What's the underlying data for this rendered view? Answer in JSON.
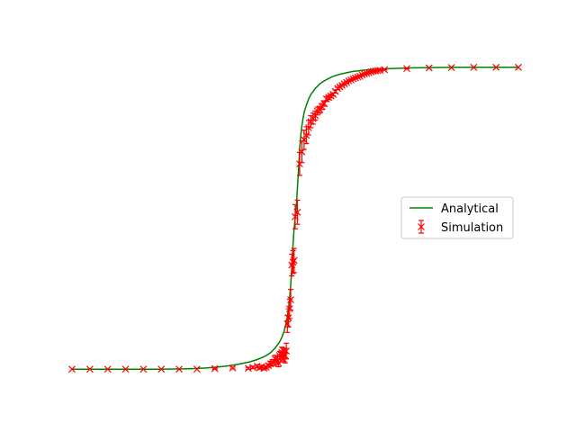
{
  "chart_data": {
    "type": "line",
    "title": "",
    "xlabel": "",
    "ylabel": "",
    "axes_visible": false,
    "grid": false,
    "xlim": [
      -1.0,
      1.0
    ],
    "ylim": [
      -0.05,
      1.05
    ],
    "legend": {
      "placement": "center-right"
    },
    "series": [
      {
        "name": "Analytical",
        "kind": "line",
        "color": "#008000",
        "x": [
          -1.0,
          -0.9,
          -0.8,
          -0.7,
          -0.6,
          -0.5,
          -0.45,
          -0.4,
          -0.35,
          -0.3,
          -0.25,
          -0.2,
          -0.17,
          -0.15,
          -0.13,
          -0.11,
          -0.09,
          -0.07,
          -0.06,
          -0.05,
          -0.045,
          -0.04,
          -0.035,
          -0.03,
          -0.025,
          -0.02,
          -0.015,
          -0.01,
          -0.005,
          0.0,
          0.005,
          0.01,
          0.015,
          0.02,
          0.025,
          0.03,
          0.035,
          0.04,
          0.05,
          0.06,
          0.07,
          0.09,
          0.11,
          0.13,
          0.15,
          0.17,
          0.2,
          0.25,
          0.3,
          0.35,
          0.4,
          0.5,
          0.6,
          0.7,
          0.8,
          0.9,
          1.0
        ],
        "y": [
          0.0,
          0.0,
          0.0,
          0.0,
          0.0,
          0.001,
          0.002,
          0.004,
          0.007,
          0.011,
          0.017,
          0.025,
          0.032,
          0.038,
          0.045,
          0.055,
          0.07,
          0.09,
          0.105,
          0.125,
          0.14,
          0.155,
          0.175,
          0.2,
          0.235,
          0.28,
          0.34,
          0.41,
          0.465,
          0.5,
          0.535,
          0.6,
          0.66,
          0.73,
          0.775,
          0.805,
          0.83,
          0.85,
          0.875,
          0.895,
          0.91,
          0.93,
          0.945,
          0.955,
          0.963,
          0.97,
          0.977,
          0.985,
          0.99,
          0.993,
          0.995,
          0.998,
          0.999,
          1.0,
          1.0,
          1.0,
          1.0
        ]
      },
      {
        "name": "Simulation",
        "kind": "errorbar",
        "marker": "x",
        "color": "#ff0000",
        "x": [
          -1.0,
          -0.92,
          -0.84,
          -0.76,
          -0.68,
          -0.6,
          -0.52,
          -0.44,
          -0.36,
          -0.28,
          -0.21,
          -0.19,
          -0.17,
          -0.16,
          -0.15,
          -0.14,
          -0.13,
          -0.12,
          -0.11,
          -0.1,
          -0.09,
          -0.08,
          -0.075,
          -0.07,
          -0.065,
          -0.06,
          -0.055,
          -0.05,
          -0.045,
          -0.04,
          -0.035,
          -0.03,
          -0.025,
          -0.02,
          -0.015,
          -0.01,
          -0.005,
          0.0,
          0.01,
          0.02,
          0.03,
          0.04,
          0.05,
          0.06,
          0.07,
          0.08,
          0.09,
          0.1,
          0.11,
          0.12,
          0.13,
          0.14,
          0.15,
          0.16,
          0.17,
          0.18,
          0.19,
          0.2,
          0.21,
          0.22,
          0.23,
          0.24,
          0.25,
          0.26,
          0.27,
          0.28,
          0.29,
          0.3,
          0.31,
          0.32,
          0.33,
          0.34,
          0.35,
          0.36,
          0.37,
          0.38,
          0.4,
          0.5,
          0.6,
          0.7,
          0.8,
          0.9,
          1.0
        ],
        "y": [
          0.0,
          0.0,
          0.0,
          0.0,
          0.0,
          0.0,
          0.0,
          0.0,
          0.002,
          0.004,
          0.003,
          0.006,
          0.01,
          0.004,
          0.008,
          0.003,
          0.006,
          0.012,
          0.018,
          0.022,
          0.034,
          0.03,
          0.02,
          0.045,
          0.04,
          0.055,
          0.05,
          0.047,
          0.045,
          0.06,
          0.15,
          0.17,
          0.2,
          0.23,
          0.345,
          0.355,
          0.36,
          0.505,
          0.52,
          0.68,
          0.72,
          0.76,
          0.775,
          0.8,
          0.82,
          0.83,
          0.84,
          0.855,
          0.86,
          0.87,
          0.88,
          0.895,
          0.9,
          0.905,
          0.91,
          0.92,
          0.93,
          0.935,
          0.94,
          0.945,
          0.95,
          0.955,
          0.958,
          0.962,
          0.965,
          0.968,
          0.97,
          0.975,
          0.978,
          0.98,
          0.982,
          0.985,
          0.987,
          0.988,
          0.989,
          0.99,
          0.992,
          0.996,
          0.998,
          0.999,
          1.0,
          1.0,
          1.0
        ],
        "yerr": [
          0,
          0,
          0,
          0,
          0,
          0,
          0,
          0,
          0.002,
          0.003,
          0.003,
          0.004,
          0.005,
          0.004,
          0.005,
          0.004,
          0.005,
          0.006,
          0.008,
          0.01,
          0.012,
          0.012,
          0.012,
          0.014,
          0.016,
          0.018,
          0.02,
          0.022,
          0.024,
          0.026,
          0.028,
          0.03,
          0.032,
          0.034,
          0.036,
          0.038,
          0.04,
          0.04,
          0.04,
          0.038,
          0.036,
          0.032,
          0.028,
          0.024,
          0.02,
          0.018,
          0.015,
          0.013,
          0.011,
          0.01,
          0.009,
          0.008,
          0.007,
          0.006,
          0.005,
          0.005,
          0.004,
          0.004,
          0.003,
          0.003,
          0.003,
          0.002,
          0.002,
          0.002,
          0.002,
          0.002,
          0.001,
          0.001,
          0.001,
          0.001,
          0.001,
          0.001,
          0.001,
          0.001,
          0.001,
          0.001,
          0.001,
          0.001,
          0.0,
          0.0,
          0.0,
          0.0,
          0.0
        ]
      }
    ]
  }
}
